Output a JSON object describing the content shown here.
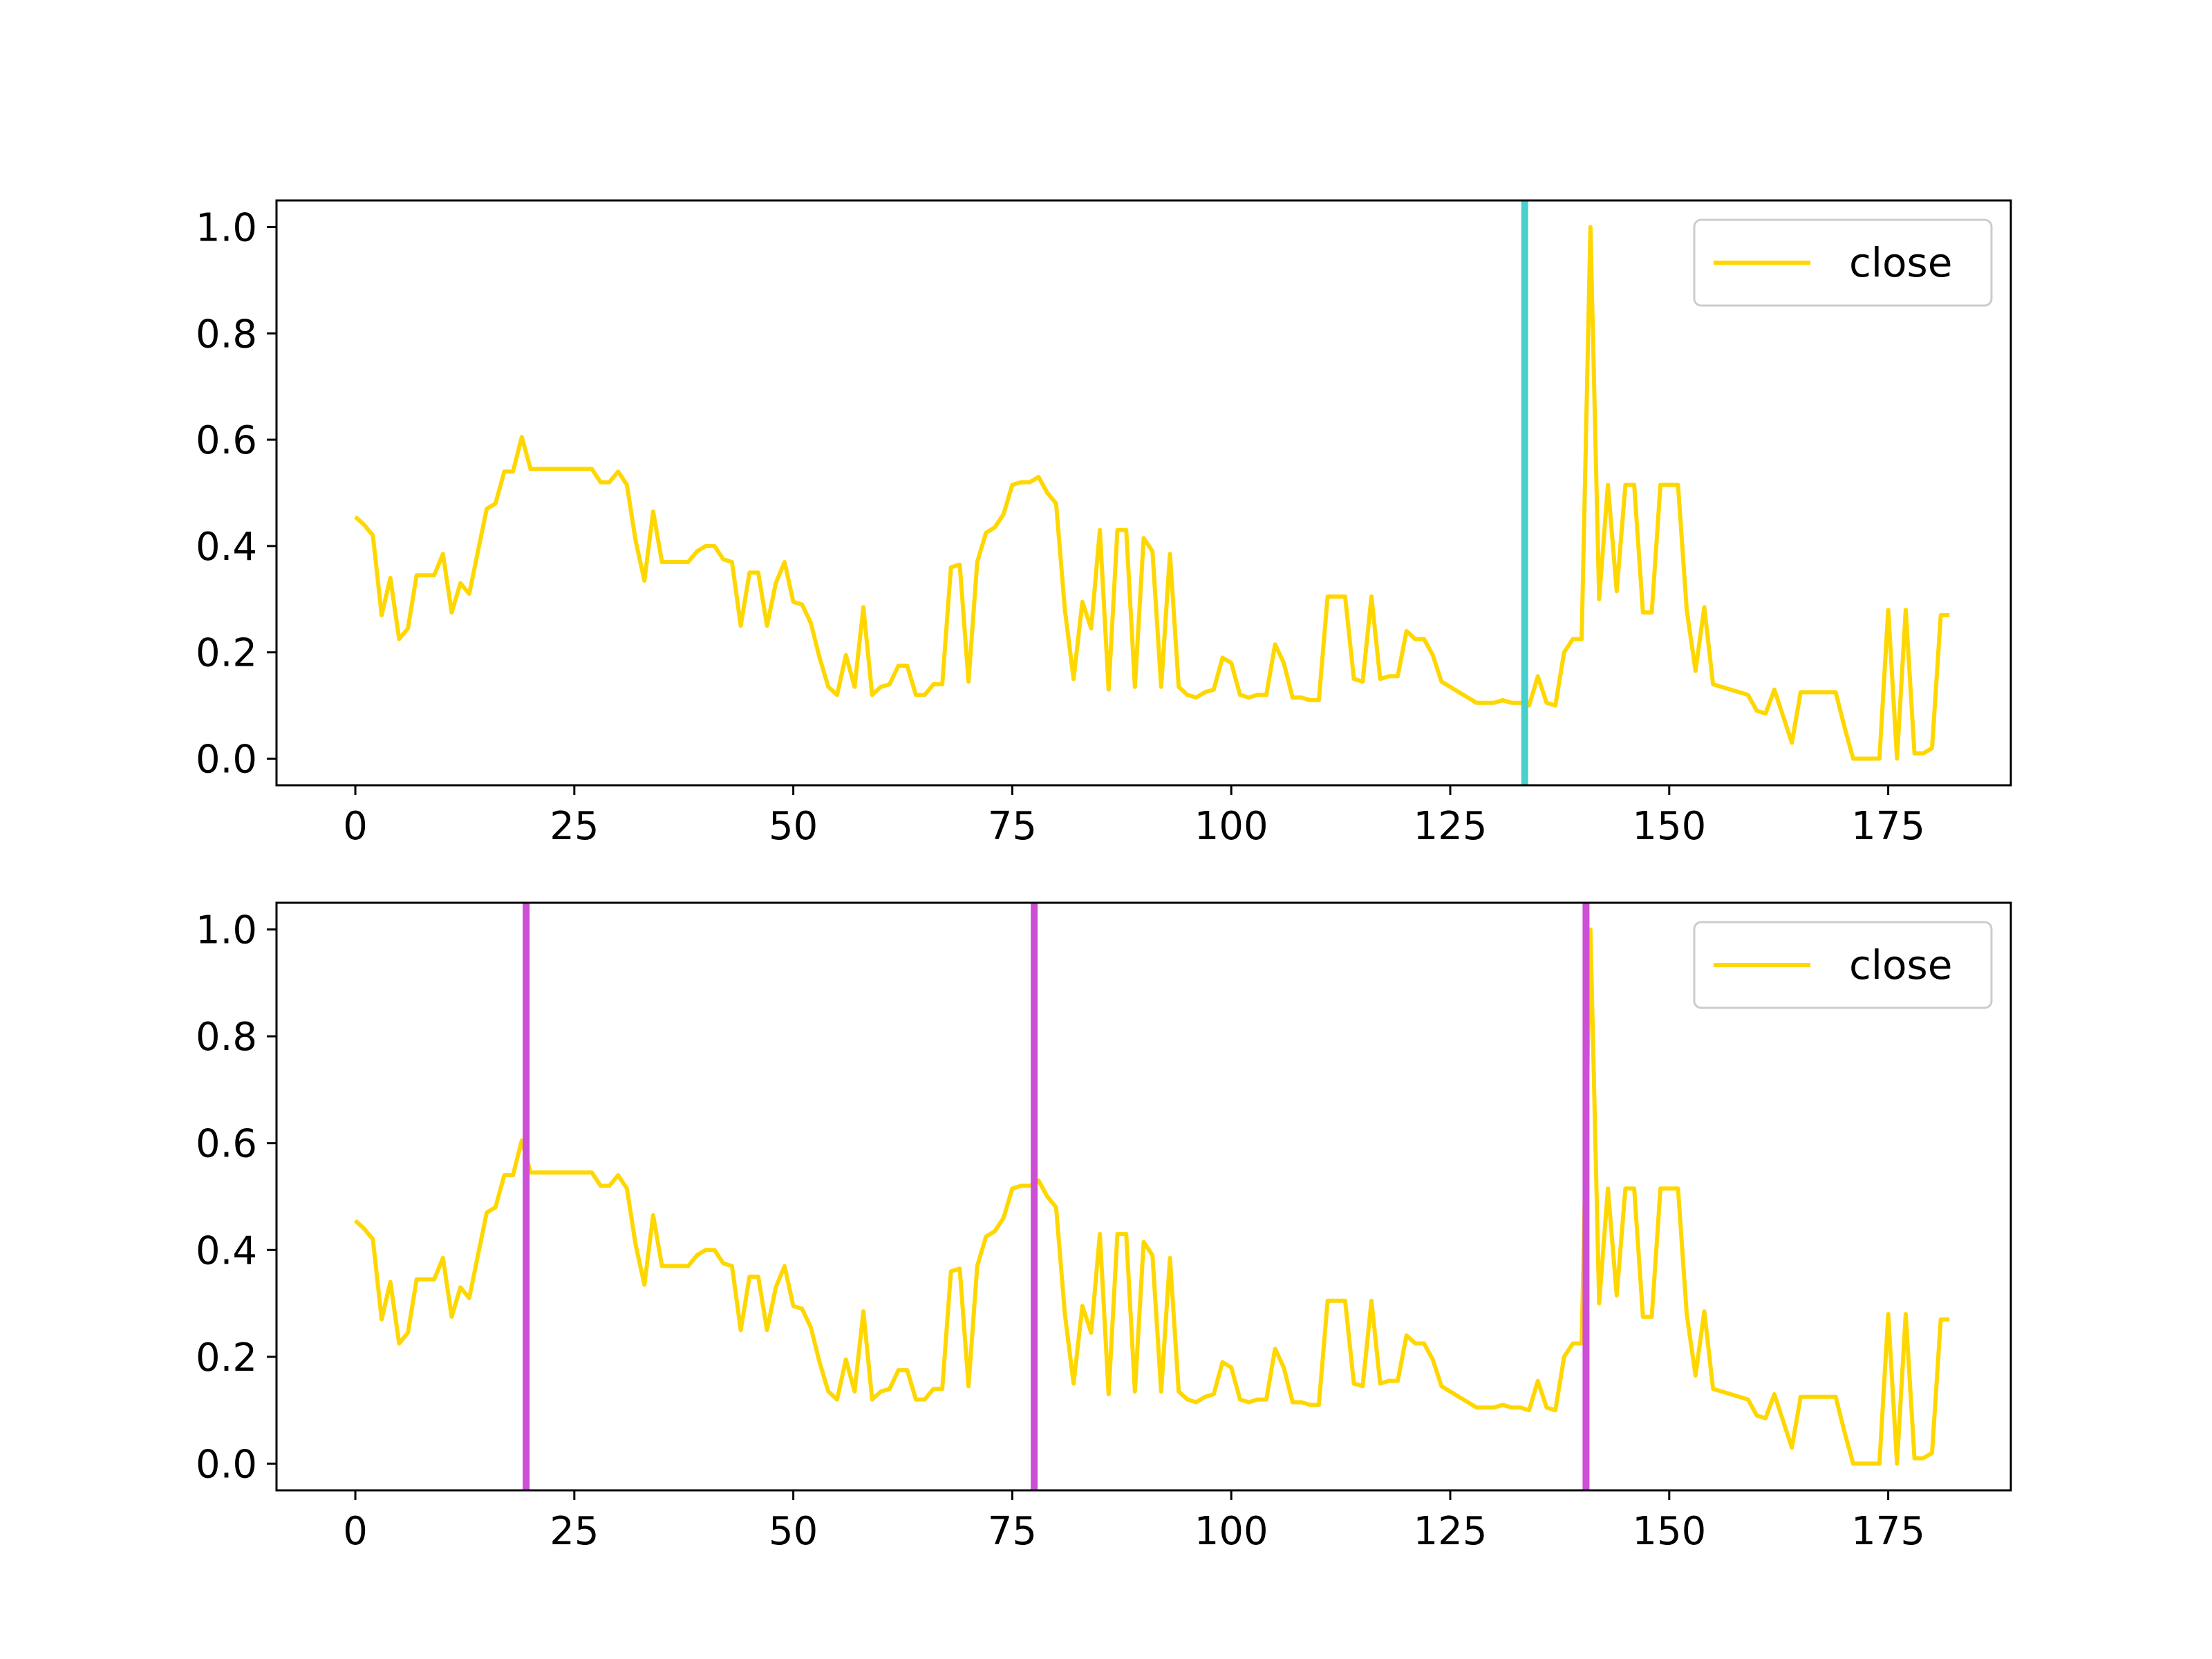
{
  "chart_data": [
    {
      "type": "line",
      "title": "",
      "xlabel": "",
      "ylabel": "",
      "xlim": [
        -9,
        189
      ],
      "ylim": [
        -0.05,
        1.05
      ],
      "xticks": [
        0,
        25,
        50,
        75,
        100,
        125,
        150,
        175
      ],
      "yticks": [
        0.0,
        0.2,
        0.4,
        0.6,
        0.8,
        1.0
      ],
      "xtick_labels": [
        "0",
        "25",
        "50",
        "75",
        "100",
        "125",
        "150",
        "175"
      ],
      "ytick_labels": [
        "0.0",
        "0.2",
        "0.4",
        "0.6",
        "0.8",
        "1.0"
      ],
      "grid": false,
      "legend": {
        "position": "top-right",
        "entries": [
          "close"
        ]
      },
      "series": [
        {
          "name": "close",
          "color": "#FFD700",
          "x_start": 0,
          "values": [
            0.455,
            0.44,
            0.42,
            0.27,
            0.34,
            0.225,
            0.245,
            0.345,
            0.345,
            0.345,
            0.385,
            0.275,
            0.33,
            0.31,
            0.39,
            0.47,
            0.48,
            0.54,
            0.54,
            0.605,
            0.545,
            0.545,
            0.545,
            0.545,
            0.545,
            0.545,
            0.545,
            0.545,
            0.52,
            0.52,
            0.54,
            0.515,
            0.41,
            0.335,
            0.465,
            0.37,
            0.37,
            0.37,
            0.37,
            0.39,
            0.4,
            0.4,
            0.375,
            0.37,
            0.25,
            0.35,
            0.35,
            0.25,
            0.33,
            0.37,
            0.295,
            0.29,
            0.255,
            0.19,
            0.135,
            0.12,
            0.195,
            0.135,
            0.285,
            0.12,
            0.135,
            0.14,
            0.175,
            0.175,
            0.12,
            0.12,
            0.14,
            0.14,
            0.36,
            0.365,
            0.145,
            0.37,
            0.425,
            0.435,
            0.46,
            0.515,
            0.52,
            0.52,
            0.53,
            0.5,
            0.48,
            0.28,
            0.15,
            0.295,
            0.245,
            0.43,
            0.13,
            0.43,
            0.43,
            0.135,
            0.415,
            0.39,
            0.135,
            0.385,
            0.135,
            0.12,
            0.115,
            0.125,
            0.13,
            0.19,
            0.18,
            0.12,
            0.115,
            0.12,
            0.12,
            0.215,
            0.18,
            0.115,
            0.115,
            0.11,
            0.11,
            0.305,
            0.305,
            0.305,
            0.15,
            0.145,
            0.305,
            0.15,
            0.155,
            0.155,
            0.24,
            0.225,
            0.225,
            0.195,
            0.145,
            0.135,
            0.125,
            0.115,
            0.105,
            0.105,
            0.105,
            0.11,
            0.105,
            0.105,
            0.1,
            0.155,
            0.105,
            0.1,
            0.2,
            0.225,
            0.225,
            1.0,
            0.3,
            0.515,
            0.315,
            0.515,
            0.515,
            0.275,
            0.275,
            0.515,
            0.515,
            0.515,
            0.28,
            0.165,
            0.285,
            0.14,
            0.135,
            0.13,
            0.125,
            0.12,
            0.09,
            0.085,
            0.13,
            0.08,
            0.03,
            0.125,
            0.125,
            0.125,
            0.125,
            0.125,
            0.06,
            0.0,
            0.0,
            0.0,
            0.0,
            0.28,
            0.0,
            0.28,
            0.01,
            0.01,
            0.02,
            0.27,
            0.27
          ]
        }
      ],
      "vertical_lines": [
        {
          "x": 133.5,
          "color": "#48D1CC"
        }
      ]
    },
    {
      "type": "line",
      "title": "",
      "xlabel": "",
      "ylabel": "",
      "xlim": [
        -9,
        189
      ],
      "ylim": [
        -0.05,
        1.05
      ],
      "xticks": [
        0,
        25,
        50,
        75,
        100,
        125,
        150,
        175
      ],
      "yticks": [
        0.0,
        0.2,
        0.4,
        0.6,
        0.8,
        1.0
      ],
      "xtick_labels": [
        "0",
        "25",
        "50",
        "75",
        "100",
        "125",
        "150",
        "175"
      ],
      "ytick_labels": [
        "0.0",
        "0.2",
        "0.4",
        "0.6",
        "0.8",
        "1.0"
      ],
      "grid": false,
      "legend": {
        "position": "top-right",
        "entries": [
          "close"
        ]
      },
      "series": [
        {
          "name": "close",
          "color": "#FFD700",
          "x_start": 0,
          "values": [
            0.455,
            0.44,
            0.42,
            0.27,
            0.34,
            0.225,
            0.245,
            0.345,
            0.345,
            0.345,
            0.385,
            0.275,
            0.33,
            0.31,
            0.39,
            0.47,
            0.48,
            0.54,
            0.54,
            0.605,
            0.545,
            0.545,
            0.545,
            0.545,
            0.545,
            0.545,
            0.545,
            0.545,
            0.52,
            0.52,
            0.54,
            0.515,
            0.41,
            0.335,
            0.465,
            0.37,
            0.37,
            0.37,
            0.37,
            0.39,
            0.4,
            0.4,
            0.375,
            0.37,
            0.25,
            0.35,
            0.35,
            0.25,
            0.33,
            0.37,
            0.295,
            0.29,
            0.255,
            0.19,
            0.135,
            0.12,
            0.195,
            0.135,
            0.285,
            0.12,
            0.135,
            0.14,
            0.175,
            0.175,
            0.12,
            0.12,
            0.14,
            0.14,
            0.36,
            0.365,
            0.145,
            0.37,
            0.425,
            0.435,
            0.46,
            0.515,
            0.52,
            0.52,
            0.53,
            0.5,
            0.48,
            0.28,
            0.15,
            0.295,
            0.245,
            0.43,
            0.13,
            0.43,
            0.43,
            0.135,
            0.415,
            0.39,
            0.135,
            0.385,
            0.135,
            0.12,
            0.115,
            0.125,
            0.13,
            0.19,
            0.18,
            0.12,
            0.115,
            0.12,
            0.12,
            0.215,
            0.18,
            0.115,
            0.115,
            0.11,
            0.11,
            0.305,
            0.305,
            0.305,
            0.15,
            0.145,
            0.305,
            0.15,
            0.155,
            0.155,
            0.24,
            0.225,
            0.225,
            0.195,
            0.145,
            0.135,
            0.125,
            0.115,
            0.105,
            0.105,
            0.105,
            0.11,
            0.105,
            0.105,
            0.1,
            0.155,
            0.105,
            0.1,
            0.2,
            0.225,
            0.225,
            1.0,
            0.3,
            0.515,
            0.315,
            0.515,
            0.515,
            0.275,
            0.275,
            0.515,
            0.515,
            0.515,
            0.28,
            0.165,
            0.285,
            0.14,
            0.135,
            0.13,
            0.125,
            0.12,
            0.09,
            0.085,
            0.13,
            0.08,
            0.03,
            0.125,
            0.125,
            0.125,
            0.125,
            0.125,
            0.06,
            0.0,
            0.0,
            0.0,
            0.0,
            0.28,
            0.0,
            0.28,
            0.01,
            0.01,
            0.02,
            0.27,
            0.27
          ]
        }
      ],
      "vertical_lines": [
        {
          "x": 19.5,
          "color": "#CC4FD6"
        },
        {
          "x": 77.5,
          "color": "#CC4FD6"
        },
        {
          "x": 140.5,
          "color": "#CC4FD6"
        }
      ]
    }
  ]
}
